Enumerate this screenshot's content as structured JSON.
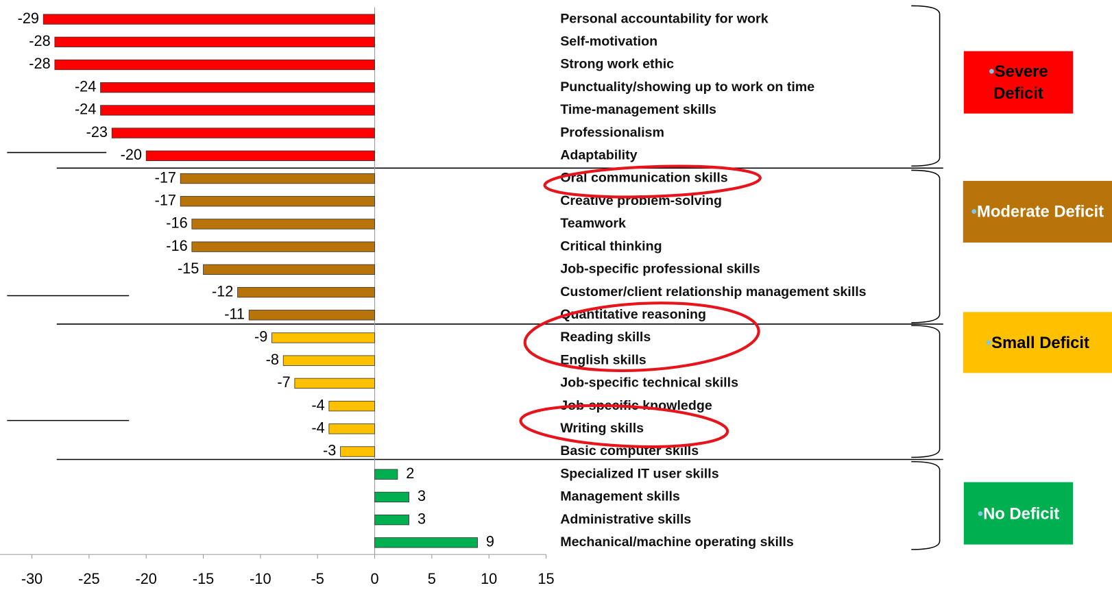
{
  "chart_data": {
    "type": "bar",
    "orientation": "horizontal",
    "series": [
      {
        "name": "Severe Deficit",
        "color": "#ff0000",
        "text_color": "#000000",
        "categories": [
          "Personal accountability for work",
          "Self-motivation",
          "Strong work ethic",
          "Punctuality/showing up to work on time",
          "Time-management skills",
          "Professionalism",
          "Adaptability"
        ],
        "values": [
          -29,
          -28,
          -28,
          -24,
          -24,
          -23,
          -20
        ]
      },
      {
        "name": "Moderate Deficit",
        "color": "#b8730a",
        "text_color": "#ffffff",
        "categories": [
          "Oral communication skills",
          "Creative problem-solving",
          "Teamwork",
          "Critical thinking",
          "Job-specific professional skills",
          "Customer/client relationship management skills",
          "Quantitative reasoning"
        ],
        "values": [
          -17,
          -17,
          -16,
          -16,
          -15,
          -12,
          -11
        ]
      },
      {
        "name": "Small Deficit",
        "color": "#ffc000",
        "text_color": "#000000",
        "categories": [
          "Reading skills",
          "English skills",
          "Job-specific technical skills",
          "Job-specific knowledge",
          "Writing skills",
          "Basic computer skills"
        ],
        "values": [
          -9,
          -8,
          -7,
          -4,
          -4,
          -3
        ]
      },
      {
        "name": "No Deficit",
        "color": "#00b050",
        "text_color": "#ffffff",
        "categories": [
          "Specialized IT user skills",
          "Management skills",
          "Administrative skills",
          "Mechanical/machine operating skills"
        ],
        "values": [
          2,
          3,
          3,
          9
        ]
      }
    ],
    "xlim": [
      -30,
      15
    ],
    "xticks": [
      -30,
      -25,
      -20,
      -15,
      -10,
      -5,
      0,
      5,
      10,
      15
    ]
  }
}
